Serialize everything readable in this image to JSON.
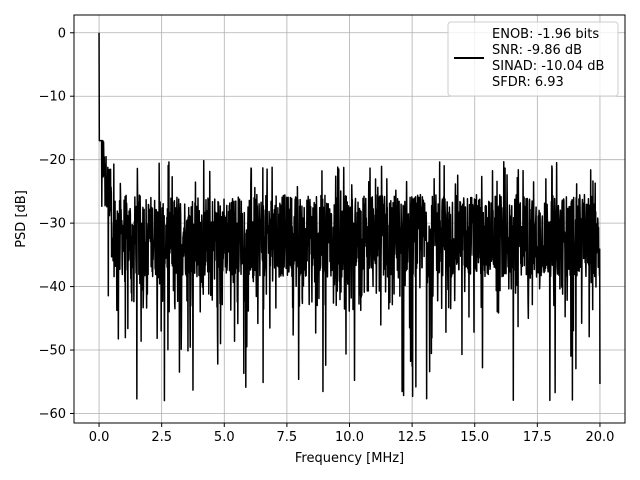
{
  "chart_data": {
    "type": "line",
    "xlabel": "Frequency [MHz]",
    "ylabel": "PSD [dB]",
    "xlim": [
      -1.0,
      21.0
    ],
    "ylim": [
      -61.5,
      2.8
    ],
    "xticks": [
      0.0,
      2.5,
      5.0,
      7.5,
      10.0,
      12.5,
      15.0,
      17.5,
      20.0
    ],
    "xtick_labels": [
      "0.0",
      "2.5",
      "5.0",
      "7.5",
      "10.0",
      "12.5",
      "15.0",
      "17.5",
      "20.0"
    ],
    "yticks": [
      0,
      -10,
      -20,
      -30,
      -40,
      -50,
      -60
    ],
    "ytick_labels": [
      "0",
      "−10",
      "−20",
      "−30",
      "−40",
      "−50",
      "−60"
    ],
    "grid": true,
    "legend_position": "top-right",
    "legend_lines": [
      "ENOB: -1.96 bits",
      "SNR: -9.86 dB",
      "SINAD: -10.04 dB",
      "SFDR: 6.93"
    ],
    "series": [
      {
        "color": "#000000",
        "x_start": 0.0,
        "x_end": 20.0,
        "num_points": 2001,
        "peak": {
          "x": 0.0,
          "y": 0.0
        },
        "initial_decay": [
          {
            "x": 0.05,
            "y": -9
          },
          {
            "x": 0.1,
            "y": -15
          },
          {
            "x": 0.2,
            "y": -20
          },
          {
            "x": 0.5,
            "y": -24
          }
        ],
        "noise_floor_mean": -30,
        "noise_upper": -17,
        "noise_lower": -58
      }
    ]
  }
}
